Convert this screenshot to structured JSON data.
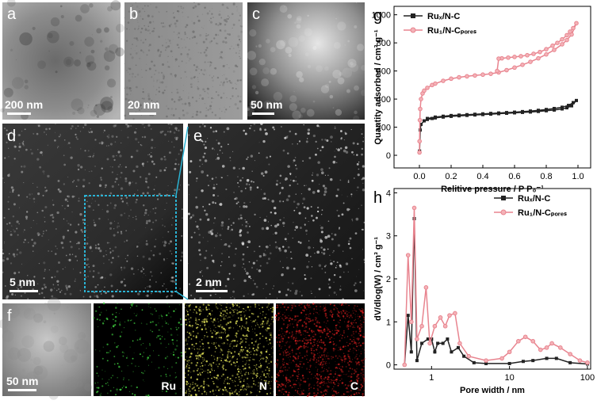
{
  "panels": [
    {
      "label": "a",
      "scale": "200 nm"
    },
    {
      "label": "b",
      "scale": "20 nm"
    },
    {
      "label": "c",
      "scale": "50 nm"
    },
    {
      "label": "d",
      "scale": "5 nm"
    },
    {
      "label": "e",
      "scale": "2 nm"
    },
    {
      "label": "f",
      "scale": "50 nm"
    }
  ],
  "mapping_labels": [
    "Ru",
    "N",
    "C"
  ],
  "chart_data": [
    {
      "type": "line",
      "panel": "g",
      "x_label": "Relitive pressure / P P₀⁻¹",
      "y_label": "Quantity adsorbed / cm³ g⁻¹",
      "xlim": [
        -0.16,
        1.08
      ],
      "ylim": [
        -90,
        1060
      ],
      "xticks": [
        {
          "value": 0,
          "label": "0.0"
        },
        0.2,
        0.4,
        0.6,
        0.8,
        {
          "value": 1,
          "label": "1.0"
        }
      ],
      "yticks": [
        0,
        200,
        400,
        600,
        800,
        1000
      ],
      "legend": "upper left",
      "series": [
        {
          "name": "Ruₓ/N-C",
          "color": "#222222",
          "marker": "square",
          "x": [
            0.001,
            0.005,
            0.01,
            0.03,
            0.05,
            0.08,
            0.1,
            0.15,
            0.2,
            0.25,
            0.3,
            0.35,
            0.4,
            0.45,
            0.5,
            0.55,
            0.6,
            0.65,
            0.7,
            0.75,
            0.8,
            0.85,
            0.9,
            0.93,
            0.96,
            0.99,
            0.97,
            0.94,
            0.9,
            0.85,
            0.8,
            0.75,
            0.7,
            0.65,
            0.6,
            0.55,
            0.5,
            0.45,
            0.4,
            0.35,
            0.3,
            0.25,
            0.2,
            0.15,
            0.1,
            0.05
          ],
          "values": [
            30,
            180,
            220,
            245,
            255,
            262,
            266,
            272,
            277,
            281,
            284,
            287,
            290,
            293,
            296,
            299,
            302,
            305,
            308,
            312,
            317,
            322,
            330,
            338,
            352,
            390,
            375,
            355,
            342,
            333,
            326,
            320,
            315,
            311,
            307,
            304,
            301,
            298,
            295,
            292,
            289,
            286,
            283,
            278,
            272,
            262
          ]
        },
        {
          "name": "Ru₁/N-Cₚₒᵣₑₛ",
          "color": "#e8848f",
          "marker": "circle",
          "x": [
            0.0005,
            0.001,
            0.003,
            0.005,
            0.01,
            0.02,
            0.03,
            0.05,
            0.08,
            0.1,
            0.15,
            0.2,
            0.25,
            0.3,
            0.35,
            0.4,
            0.45,
            0.5,
            0.55,
            0.6,
            0.65,
            0.7,
            0.75,
            0.8,
            0.85,
            0.9,
            0.93,
            0.96,
            0.99,
            0.97,
            0.95,
            0.93,
            0.9,
            0.87,
            0.84,
            0.8,
            0.76,
            0.72,
            0.68,
            0.64,
            0.6,
            0.56,
            0.52,
            0.5,
            0.49
          ],
          "values": [
            20,
            100,
            250,
            330,
            400,
            440,
            460,
            480,
            500,
            510,
            530,
            545,
            555,
            562,
            568,
            574,
            580,
            590,
            606,
            624,
            644,
            665,
            690,
            718,
            750,
            790,
            820,
            860,
            940,
            905,
            880,
            855,
            825,
            800,
            780,
            755,
            735,
            722,
            712,
            705,
            700,
            695,
            690,
            688,
            600
          ]
        }
      ]
    },
    {
      "type": "line",
      "panel": "h",
      "x_label": "Pore width / nm",
      "y_label": "dV/dlog(W) / cm³ g⁻¹",
      "xlim": [
        0.33,
        110
      ],
      "ylim": [
        -0.1,
        4.1
      ],
      "xscale": "log",
      "xticks": [
        1,
        10,
        100
      ],
      "yticks": [
        0,
        1,
        2,
        3,
        4
      ],
      "legend": "upper right",
      "series": [
        {
          "name": "Ruₓ/N-C",
          "color": "#222222",
          "marker": "square",
          "x": [
            0.45,
            0.5,
            0.55,
            0.6,
            0.65,
            0.75,
            0.9,
            1.0,
            1.1,
            1.2,
            1.4,
            1.6,
            1.8,
            2.2,
            2.6,
            3.5,
            5,
            10,
            15,
            20,
            30,
            40,
            60,
            100
          ],
          "values": [
            0.0,
            1.15,
            0.3,
            3.4,
            0.1,
            0.5,
            0.6,
            0.6,
            0.3,
            0.5,
            0.5,
            0.6,
            0.3,
            0.4,
            0.2,
            0.05,
            0.03,
            0.03,
            0.08,
            0.1,
            0.15,
            0.15,
            0.05,
            0.02
          ]
        },
        {
          "name": "Ru₁/N-Cₚₒᵣₑₛ",
          "color": "#e8848f",
          "marker": "circle",
          "x": [
            0.45,
            0.5,
            0.55,
            0.6,
            0.65,
            0.75,
            0.85,
            0.95,
            1.1,
            1.3,
            1.5,
            1.7,
            2.0,
            2.3,
            3,
            5,
            8,
            10,
            13,
            16,
            20,
            25,
            30,
            35,
            45,
            60,
            80,
            100
          ],
          "values": [
            0.0,
            2.55,
            1.0,
            3.65,
            0.6,
            0.9,
            1.8,
            0.5,
            0.9,
            1.1,
            0.9,
            1.15,
            1.2,
            0.5,
            0.2,
            0.1,
            0.15,
            0.3,
            0.55,
            0.65,
            0.55,
            0.35,
            0.4,
            0.5,
            0.4,
            0.25,
            0.1,
            0.05
          ]
        }
      ]
    }
  ]
}
